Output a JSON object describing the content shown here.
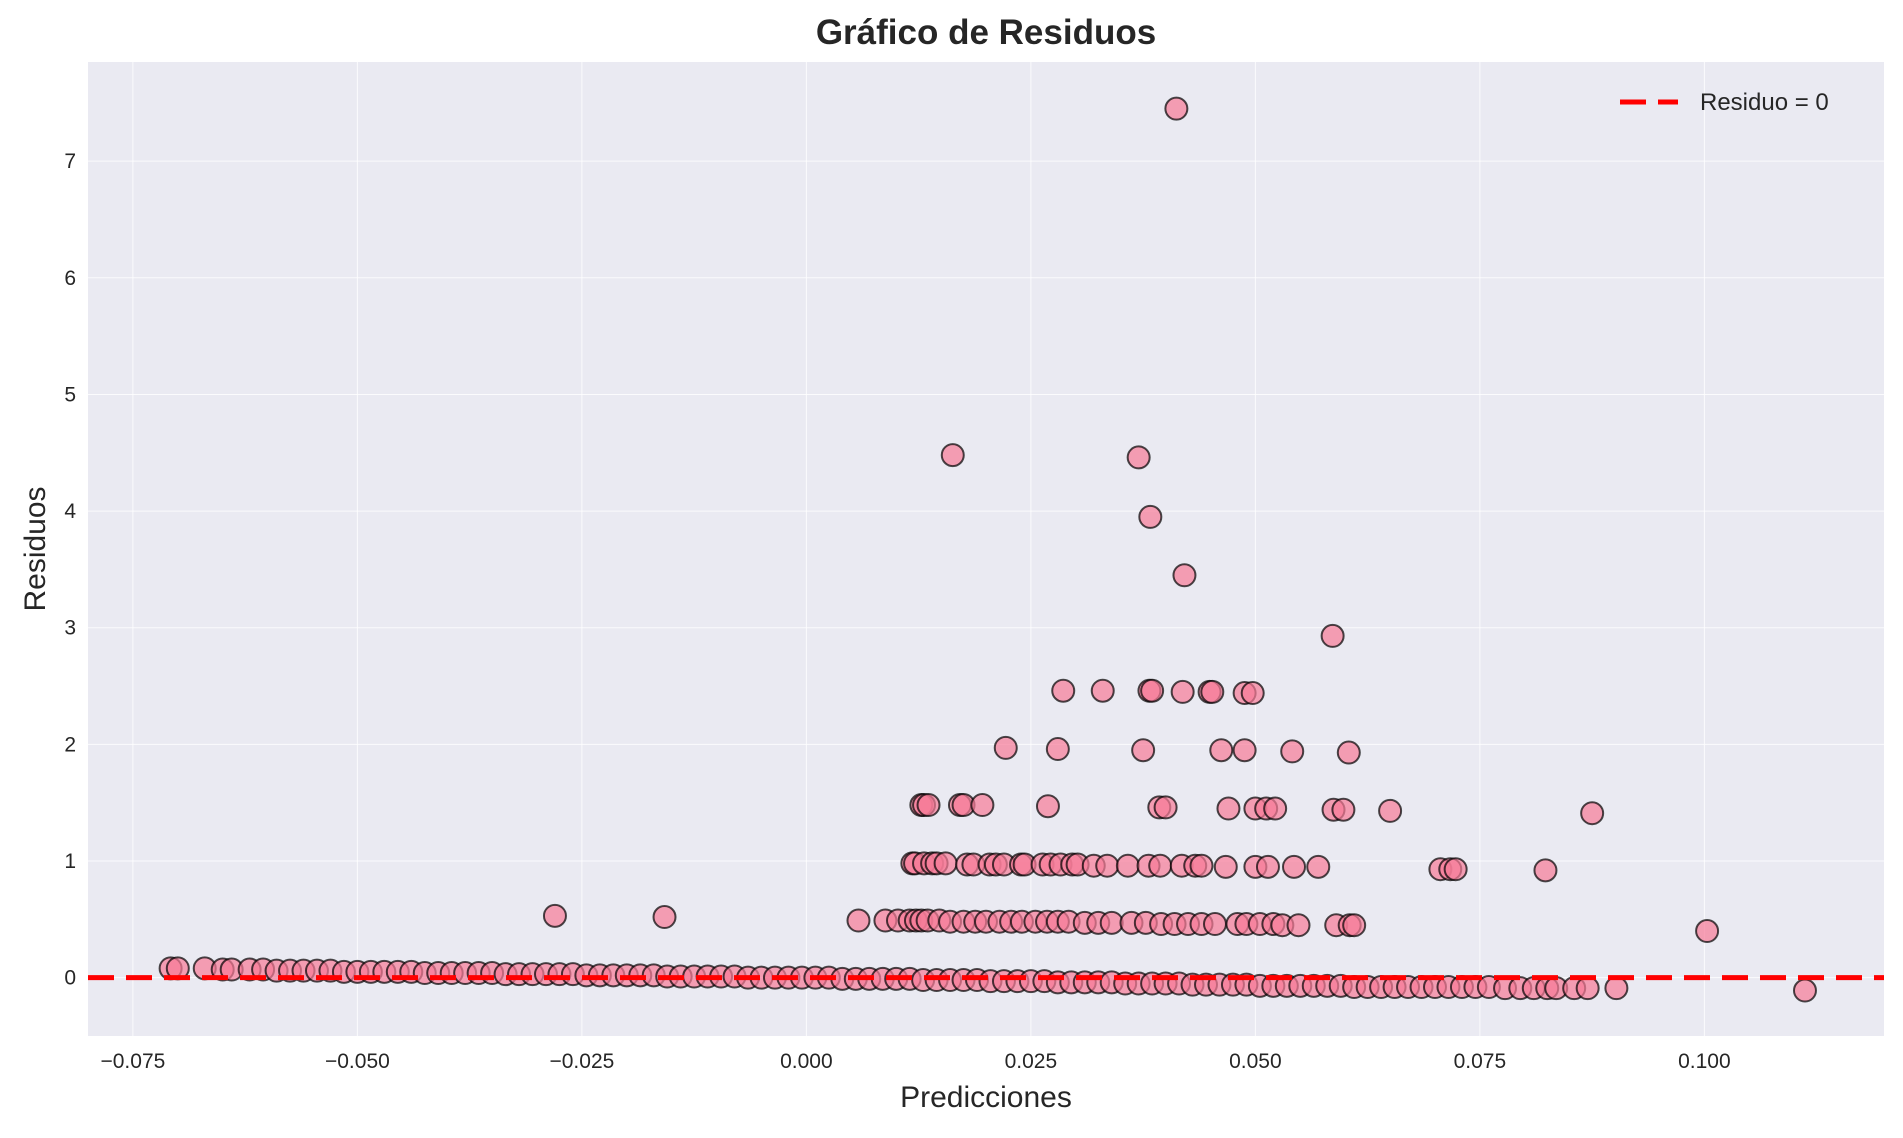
{
  "chart_data": {
    "type": "scatter",
    "title": "Gráfico de Residuos",
    "xlabel": "Predicciones",
    "ylabel": "Residuos",
    "xlim": [
      -0.08,
      0.12
    ],
    "ylim": [
      -0.5,
      7.85
    ],
    "xticks": [
      -0.075,
      -0.05,
      -0.025,
      0.0,
      0.025,
      0.05,
      0.075,
      0.1
    ],
    "xtick_labels": [
      "−0.075",
      "−0.050",
      "−0.025",
      "0.000",
      "0.025",
      "0.050",
      "0.075",
      "0.100"
    ],
    "yticks": [
      0,
      1,
      2,
      3,
      4,
      5,
      6,
      7
    ],
    "ytick_labels": [
      "0",
      "1",
      "2",
      "3",
      "4",
      "5",
      "6",
      "7"
    ],
    "grid": true,
    "legend": {
      "position": "top-right",
      "entries": [
        {
          "label": "Residuo = 0",
          "style": "dashed-line",
          "color": "#ff0000"
        }
      ]
    },
    "reference_line": {
      "y": 0,
      "color": "#ff0000",
      "style": "dashed"
    },
    "colors": {
      "background": "#eaeaf2",
      "point_fill": "#f77b97",
      "point_edge": "#000000",
      "grid": "#ffffff"
    },
    "series": [
      {
        "points": [
          [
            0.0412,
            7.45
          ],
          [
            0.0163,
            4.48
          ],
          [
            0.037,
            4.46
          ],
          [
            0.0383,
            3.95
          ],
          [
            0.0421,
            3.45
          ],
          [
            0.0586,
            2.93
          ],
          [
            0.0286,
            2.46
          ],
          [
            0.033,
            2.46
          ],
          [
            0.0382,
            2.46
          ],
          [
            0.0385,
            2.46
          ],
          [
            0.0419,
            2.45
          ],
          [
            0.0449,
            2.45
          ],
          [
            0.0452,
            2.45
          ],
          [
            0.0488,
            2.44
          ],
          [
            0.0497,
            2.44
          ],
          [
            0.0222,
            1.97
          ],
          [
            0.028,
            1.96
          ],
          [
            0.0375,
            1.95
          ],
          [
            0.0462,
            1.95
          ],
          [
            0.0488,
            1.95
          ],
          [
            0.0541,
            1.94
          ],
          [
            0.0604,
            1.93
          ],
          [
            0.0128,
            1.48
          ],
          [
            0.0131,
            1.48
          ],
          [
            0.0136,
            1.48
          ],
          [
            0.0171,
            1.48
          ],
          [
            0.0175,
            1.48
          ],
          [
            0.0196,
            1.48
          ],
          [
            0.0269,
            1.47
          ],
          [
            0.0393,
            1.46
          ],
          [
            0.04,
            1.46
          ],
          [
            0.047,
            1.45
          ],
          [
            0.05,
            1.45
          ],
          [
            0.0512,
            1.45
          ],
          [
            0.0522,
            1.45
          ],
          [
            0.0587,
            1.44
          ],
          [
            0.0598,
            1.44
          ],
          [
            0.065,
            1.43
          ],
          [
            0.0875,
            1.41
          ],
          [
            0.0118,
            0.98
          ],
          [
            0.0121,
            0.98
          ],
          [
            0.0131,
            0.98
          ],
          [
            0.014,
            0.98
          ],
          [
            0.0145,
            0.98
          ],
          [
            0.0155,
            0.98
          ],
          [
            0.0179,
            0.97
          ],
          [
            0.0186,
            0.97
          ],
          [
            0.0204,
            0.97
          ],
          [
            0.0211,
            0.97
          ],
          [
            0.022,
            0.97
          ],
          [
            0.0239,
            0.97
          ],
          [
            0.0243,
            0.97
          ],
          [
            0.0263,
            0.97
          ],
          [
            0.0272,
            0.97
          ],
          [
            0.0283,
            0.97
          ],
          [
            0.0296,
            0.97
          ],
          [
            0.0302,
            0.97
          ],
          [
            0.032,
            0.96
          ],
          [
            0.0335,
            0.96
          ],
          [
            0.0358,
            0.96
          ],
          [
            0.0381,
            0.96
          ],
          [
            0.0394,
            0.96
          ],
          [
            0.0418,
            0.96
          ],
          [
            0.0433,
            0.96
          ],
          [
            0.044,
            0.96
          ],
          [
            0.0467,
            0.95
          ],
          [
            0.05,
            0.95
          ],
          [
            0.0514,
            0.95
          ],
          [
            0.0543,
            0.95
          ],
          [
            0.057,
            0.95
          ],
          [
            0.0706,
            0.93
          ],
          [
            0.0717,
            0.93
          ],
          [
            0.0723,
            0.93
          ],
          [
            0.0823,
            0.92
          ],
          [
            0.0058,
            0.49
          ],
          [
            0.0088,
            0.49
          ],
          [
            0.0102,
            0.49
          ],
          [
            0.0115,
            0.49
          ],
          [
            0.0122,
            0.49
          ],
          [
            0.0128,
            0.49
          ],
          [
            0.0135,
            0.49
          ],
          [
            0.0148,
            0.49
          ],
          [
            0.016,
            0.48
          ],
          [
            0.0175,
            0.48
          ],
          [
            0.0188,
            0.48
          ],
          [
            0.02,
            0.48
          ],
          [
            0.0215,
            0.48
          ],
          [
            0.0228,
            0.48
          ],
          [
            0.024,
            0.48
          ],
          [
            0.0255,
            0.48
          ],
          [
            0.0268,
            0.48
          ],
          [
            0.028,
            0.48
          ],
          [
            0.0292,
            0.48
          ],
          [
            0.031,
            0.47
          ],
          [
            0.0325,
            0.47
          ],
          [
            0.034,
            0.47
          ],
          [
            0.0362,
            0.47
          ],
          [
            0.0378,
            0.47
          ],
          [
            0.0395,
            0.46
          ],
          [
            0.041,
            0.46
          ],
          [
            0.0425,
            0.46
          ],
          [
            0.044,
            0.46
          ],
          [
            0.0455,
            0.46
          ],
          [
            0.048,
            0.46
          ],
          [
            0.049,
            0.46
          ],
          [
            0.0505,
            0.46
          ],
          [
            0.052,
            0.46
          ],
          [
            0.053,
            0.45
          ],
          [
            0.0548,
            0.45
          ],
          [
            0.059,
            0.45
          ],
          [
            0.0605,
            0.45
          ],
          [
            0.061,
            0.45
          ],
          [
            -0.028,
            0.53
          ],
          [
            -0.0158,
            0.52
          ],
          [
            0.1003,
            0.4
          ],
          [
            -0.0708,
            0.08
          ],
          [
            -0.07,
            0.08
          ],
          [
            -0.067,
            0.08
          ],
          [
            -0.065,
            0.07
          ],
          [
            -0.064,
            0.07
          ],
          [
            -0.062,
            0.07
          ],
          [
            -0.0605,
            0.07
          ],
          [
            -0.059,
            0.06
          ],
          [
            -0.0575,
            0.06
          ],
          [
            -0.056,
            0.06
          ],
          [
            -0.0545,
            0.06
          ],
          [
            -0.053,
            0.06
          ],
          [
            -0.0515,
            0.05
          ],
          [
            -0.05,
            0.05
          ],
          [
            -0.0485,
            0.05
          ],
          [
            -0.047,
            0.05
          ],
          [
            -0.0455,
            0.05
          ],
          [
            -0.044,
            0.05
          ],
          [
            -0.0425,
            0.04
          ],
          [
            -0.041,
            0.04
          ],
          [
            -0.0395,
            0.04
          ],
          [
            -0.038,
            0.04
          ],
          [
            -0.0365,
            0.04
          ],
          [
            -0.035,
            0.04
          ],
          [
            -0.0335,
            0.03
          ],
          [
            -0.032,
            0.03
          ],
          [
            -0.0305,
            0.03
          ],
          [
            -0.029,
            0.03
          ],
          [
            -0.0275,
            0.03
          ],
          [
            -0.026,
            0.03
          ],
          [
            -0.0245,
            0.02
          ],
          [
            -0.023,
            0.02
          ],
          [
            -0.0215,
            0.02
          ],
          [
            -0.02,
            0.02
          ],
          [
            -0.0185,
            0.02
          ],
          [
            -0.017,
            0.02
          ],
          [
            -0.0155,
            0.01
          ],
          [
            -0.014,
            0.01
          ],
          [
            -0.0125,
            0.01
          ],
          [
            -0.011,
            0.01
          ],
          [
            -0.0095,
            0.01
          ],
          [
            -0.008,
            0.01
          ],
          [
            -0.0065,
            0.0
          ],
          [
            -0.005,
            0.0
          ],
          [
            -0.0035,
            0.0
          ],
          [
            -0.002,
            0.0
          ],
          [
            -0.0005,
            0.0
          ],
          [
            0.001,
            0.0
          ],
          [
            0.0025,
            0.0
          ],
          [
            0.004,
            -0.01
          ],
          [
            0.0055,
            -0.01
          ],
          [
            0.007,
            -0.01
          ],
          [
            0.0085,
            -0.01
          ],
          [
            0.01,
            -0.01
          ],
          [
            0.0115,
            -0.01
          ],
          [
            0.013,
            -0.02
          ],
          [
            0.0145,
            -0.02
          ],
          [
            0.016,
            -0.02
          ],
          [
            0.0175,
            -0.02
          ],
          [
            0.019,
            -0.02
          ],
          [
            0.0205,
            -0.03
          ],
          [
            0.022,
            -0.03
          ],
          [
            0.0235,
            -0.03
          ],
          [
            0.025,
            -0.03
          ],
          [
            0.0265,
            -0.03
          ],
          [
            0.028,
            -0.04
          ],
          [
            0.0295,
            -0.04
          ],
          [
            0.031,
            -0.04
          ],
          [
            0.0325,
            -0.04
          ],
          [
            0.034,
            -0.04
          ],
          [
            0.0355,
            -0.05
          ],
          [
            0.037,
            -0.05
          ],
          [
            0.0385,
            -0.05
          ],
          [
            0.04,
            -0.05
          ],
          [
            0.0415,
            -0.05
          ],
          [
            0.043,
            -0.06
          ],
          [
            0.0445,
            -0.06
          ],
          [
            0.046,
            -0.06
          ],
          [
            0.0475,
            -0.06
          ],
          [
            0.049,
            -0.06
          ],
          [
            0.0505,
            -0.07
          ],
          [
            0.052,
            -0.07
          ],
          [
            0.0535,
            -0.07
          ],
          [
            0.055,
            -0.07
          ],
          [
            0.0565,
            -0.07
          ],
          [
            0.058,
            -0.07
          ],
          [
            0.0595,
            -0.07
          ],
          [
            0.061,
            -0.08
          ],
          [
            0.0625,
            -0.08
          ],
          [
            0.064,
            -0.08
          ],
          [
            0.0655,
            -0.08
          ],
          [
            0.067,
            -0.08
          ],
          [
            0.0685,
            -0.08
          ],
          [
            0.07,
            -0.08
          ],
          [
            0.0715,
            -0.08
          ],
          [
            0.073,
            -0.08
          ],
          [
            0.0745,
            -0.08
          ],
          [
            0.076,
            -0.08
          ],
          [
            0.0778,
            -0.09
          ],
          [
            0.0795,
            -0.09
          ],
          [
            0.081,
            -0.09
          ],
          [
            0.0825,
            -0.09
          ],
          [
            0.0835,
            -0.09
          ],
          [
            0.0855,
            -0.09
          ],
          [
            0.087,
            -0.09
          ],
          [
            0.0902,
            -0.09
          ],
          [
            0.1112,
            -0.11
          ]
        ]
      }
    ]
  }
}
